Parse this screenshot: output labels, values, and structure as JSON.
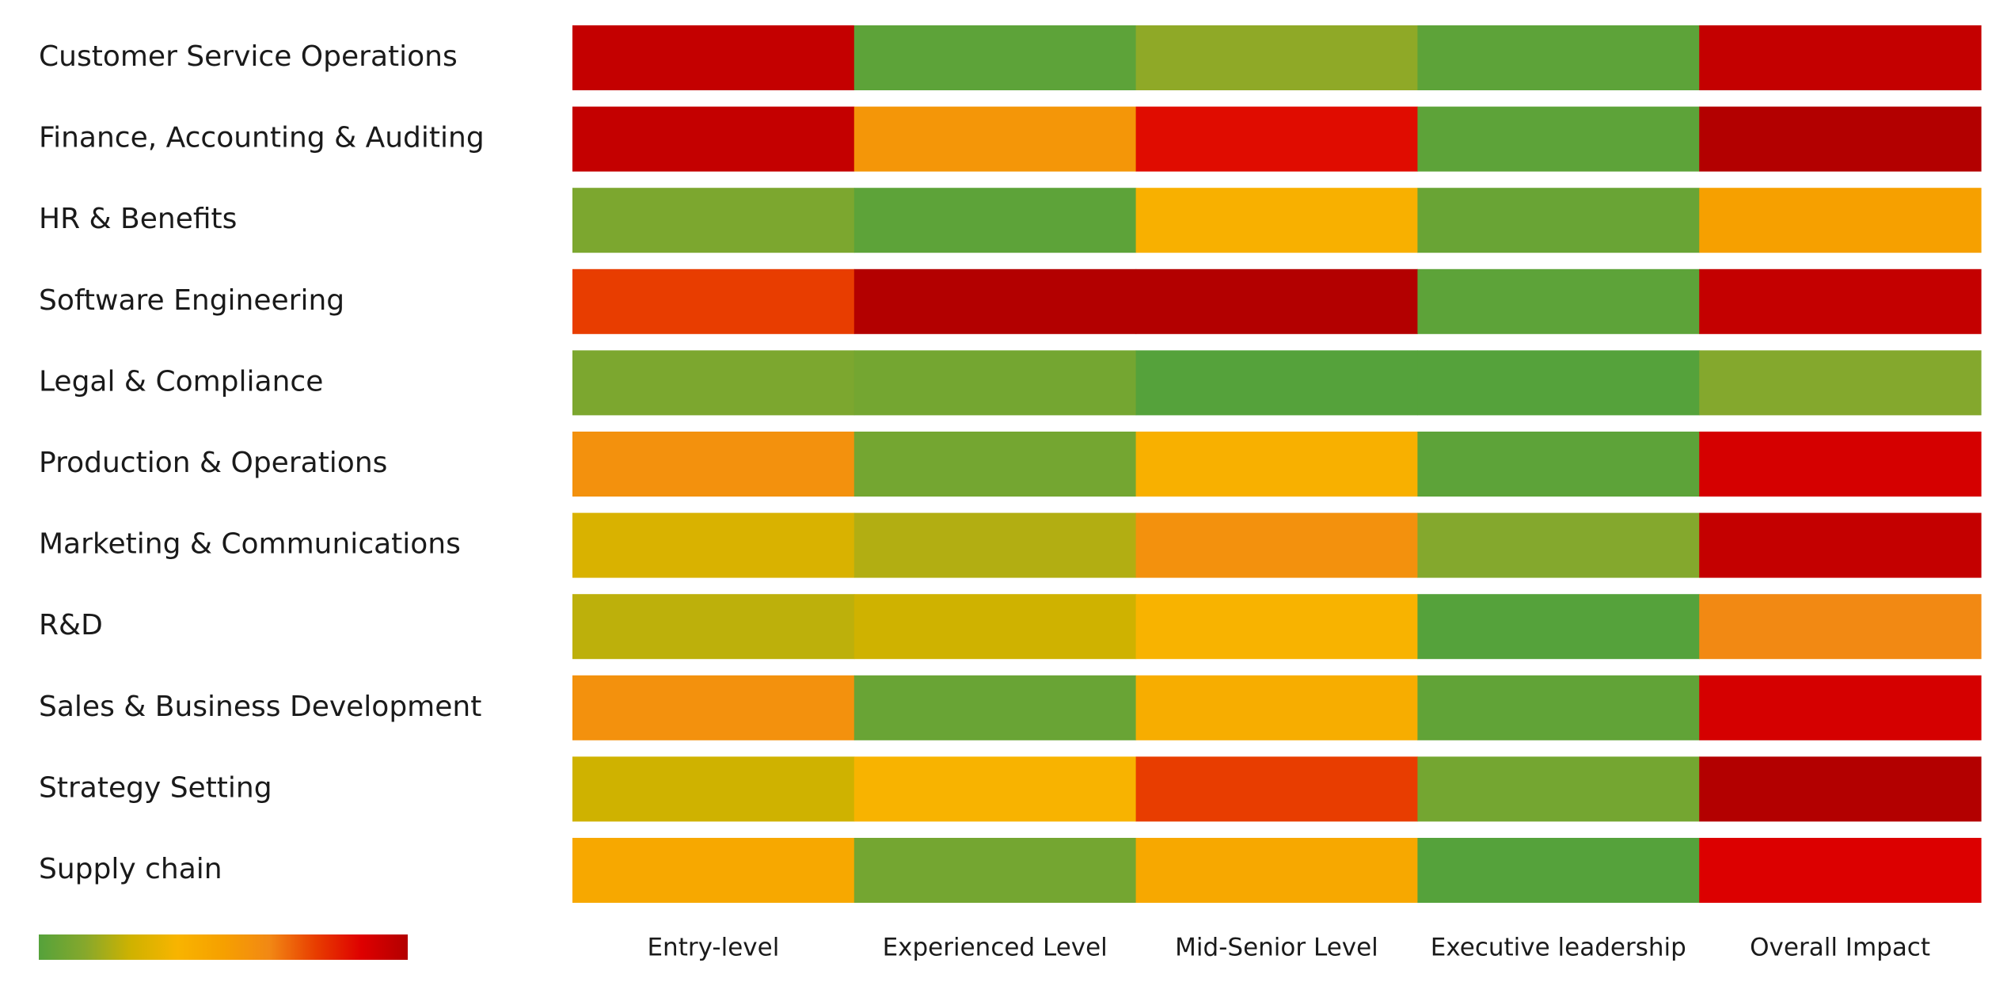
{
  "chart_data": {
    "type": "heatmap",
    "title": "",
    "xlabel": "",
    "ylabel": "",
    "rows": [
      "Customer Service Operations",
      "Finance, Accounting & Auditing",
      "HR & Benefits",
      "Software Engineering",
      "Legal & Compliance",
      "Production & Operations",
      "Marketing & Communications",
      "R&D",
      "Sales & Business Development",
      "Strategy Setting",
      "Supply chain"
    ],
    "columns": [
      "Entry-level",
      "Experienced Level",
      "Mid-Senior Level",
      "Executive leadership",
      "Overall Impact"
    ],
    "values": [
      [
        0.95,
        0.02,
        0.14,
        0.02,
        0.95
      ],
      [
        0.95,
        0.55,
        0.85,
        0.02,
        1.0
      ],
      [
        0.1,
        0.02,
        0.4,
        0.05,
        0.5
      ],
      [
        0.75,
        1.0,
        1.0,
        0.02,
        0.95
      ],
      [
        0.1,
        0.08,
        0.0,
        0.0,
        0.12
      ],
      [
        0.58,
        0.08,
        0.4,
        0.02,
        0.9
      ],
      [
        0.28,
        0.2,
        0.58,
        0.12,
        0.95
      ],
      [
        0.22,
        0.25,
        0.38,
        0.0,
        0.62
      ],
      [
        0.58,
        0.05,
        0.42,
        0.03,
        0.9
      ],
      [
        0.25,
        0.38,
        0.75,
        0.08,
        1.0
      ],
      [
        0.45,
        0.08,
        0.45,
        0.0,
        0.88
      ]
    ],
    "value_range": [
      0,
      1
    ],
    "legend": {
      "placement": "bottom-left",
      "colors": [
        "#55a23b",
        "#86a82c",
        "#cfb200",
        "#f8b400",
        "#f6a000",
        "#f28814",
        "#e83d00",
        "#de0000",
        "#b30000"
      ]
    },
    "grid": false
  }
}
